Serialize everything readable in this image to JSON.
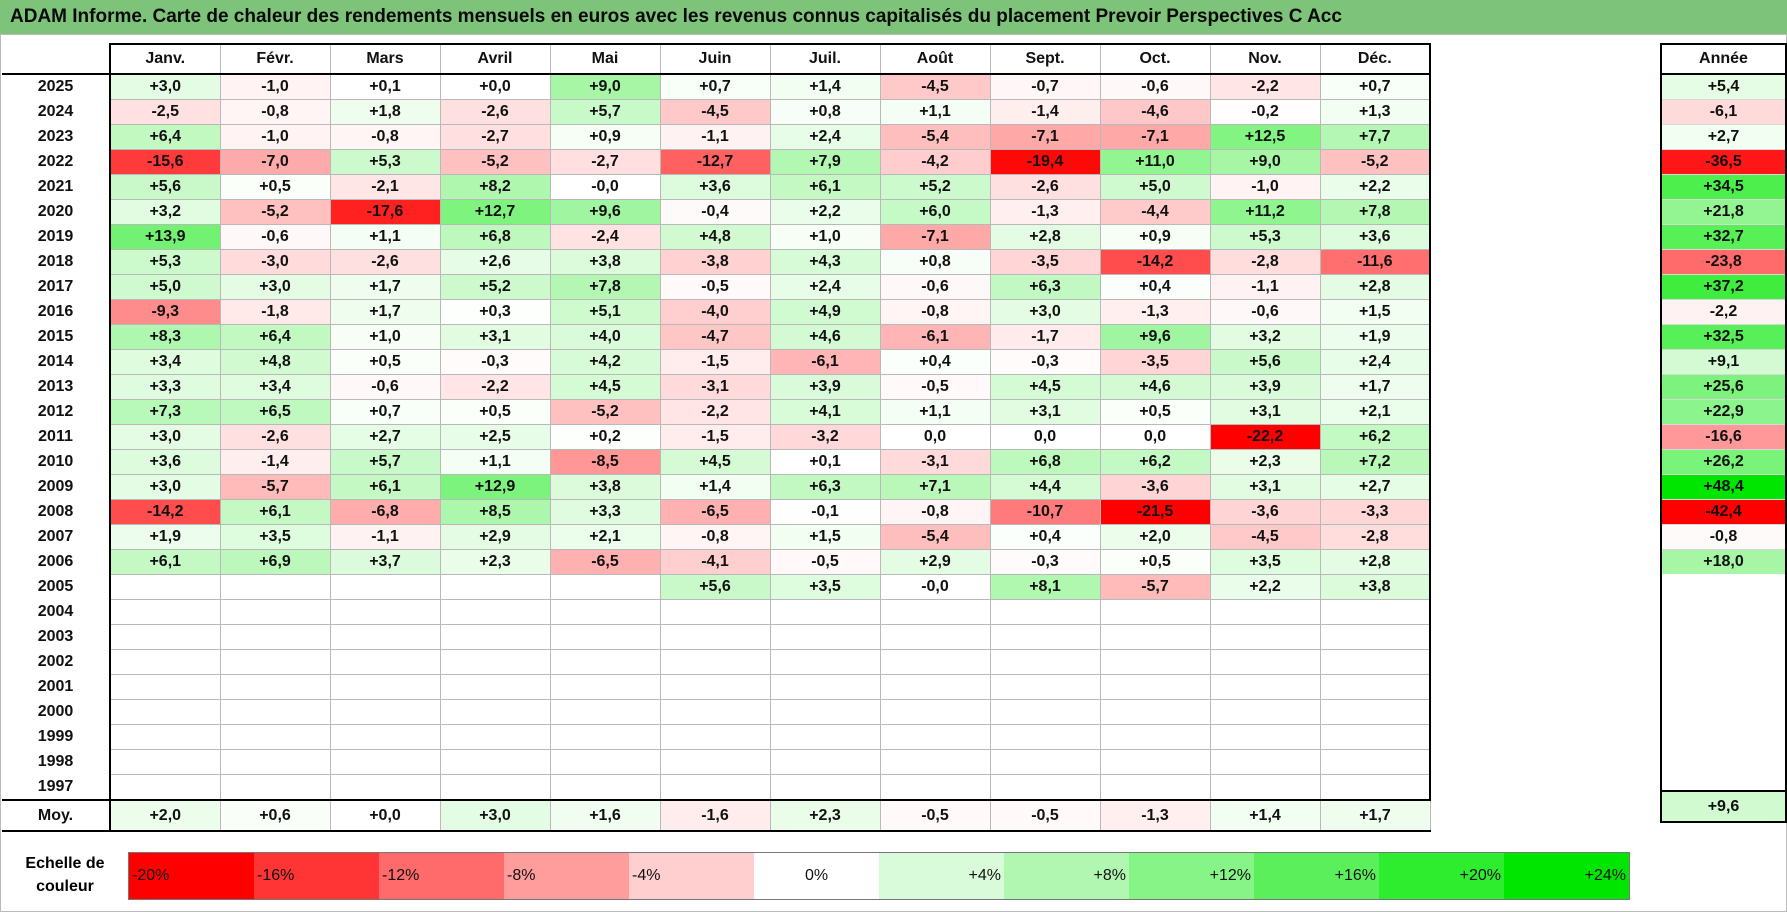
{
  "title": "ADAM Informe. Carte de chaleur des rendements mensuels en euros avec les revenus connus capitalisés du placement Prevoir Perspectives C Acc",
  "chart_data": {
    "type": "heatmap",
    "title": "ADAM Informe. Carte de chaleur des rendements mensuels en euros avec les revenus connus capitalisés du placement Prevoir Perspectives C Acc",
    "columns": [
      "Janv.",
      "Févr.",
      "Mars",
      "Avril",
      "Mai",
      "Juin",
      "Juil.",
      "Août",
      "Sept.",
      "Oct.",
      "Nov.",
      "Déc."
    ],
    "year_column_label": "Année",
    "rows": [
      {
        "year": "2025",
        "values": [
          "+3,0",
          "-1,0",
          "+0,1",
          "+0,0",
          "+9,0",
          "+0,7",
          "+1,4",
          "-4,5",
          "-0,7",
          "-0,6",
          "-2,2",
          "+0,7"
        ],
        "annual": "+5,4"
      },
      {
        "year": "2024",
        "values": [
          "-2,5",
          "-0,8",
          "+1,8",
          "-2,6",
          "+5,7",
          "-4,5",
          "+0,8",
          "+1,1",
          "-1,4",
          "-4,6",
          "-0,2",
          "+1,3"
        ],
        "annual": "-6,1"
      },
      {
        "year": "2023",
        "values": [
          "+6,4",
          "-1,0",
          "-0,8",
          "-2,7",
          "+0,9",
          "-1,1",
          "+2,4",
          "-5,4",
          "-7,1",
          "-7,1",
          "+12,5",
          "+7,7"
        ],
        "annual": "+2,7"
      },
      {
        "year": "2022",
        "values": [
          "-15,6",
          "-7,0",
          "+5,3",
          "-5,2",
          "-2,7",
          "-12,7",
          "+7,9",
          "-4,2",
          "-19,4",
          "+11,0",
          "+9,0",
          "-5,2"
        ],
        "annual": "-36,5"
      },
      {
        "year": "2021",
        "values": [
          "+5,6",
          "+0,5",
          "-2,1",
          "+8,2",
          "-0,0",
          "+3,6",
          "+6,1",
          "+5,2",
          "-2,6",
          "+5,0",
          "-1,0",
          "+2,2"
        ],
        "annual": "+34,5"
      },
      {
        "year": "2020",
        "values": [
          "+3,2",
          "-5,2",
          "-17,6",
          "+12,7",
          "+9,6",
          "-0,4",
          "+2,2",
          "+6,0",
          "-1,3",
          "-4,4",
          "+11,2",
          "+7,8"
        ],
        "annual": "+21,8"
      },
      {
        "year": "2019",
        "values": [
          "+13,9",
          "-0,6",
          "+1,1",
          "+6,8",
          "-2,4",
          "+4,8",
          "+1,0",
          "-7,1",
          "+2,8",
          "+0,9",
          "+5,3",
          "+3,6"
        ],
        "annual": "+32,7"
      },
      {
        "year": "2018",
        "values": [
          "+5,3",
          "-3,0",
          "-2,6",
          "+2,6",
          "+3,8",
          "-3,8",
          "+4,3",
          "+0,8",
          "-3,5",
          "-14,2",
          "-2,8",
          "-11,6"
        ],
        "annual": "-23,8"
      },
      {
        "year": "2017",
        "values": [
          "+5,0",
          "+3,0",
          "+1,7",
          "+5,2",
          "+7,8",
          "-0,5",
          "+2,4",
          "-0,6",
          "+6,3",
          "+0,4",
          "-1,1",
          "+2,8"
        ],
        "annual": "+37,2"
      },
      {
        "year": "2016",
        "values": [
          "-9,3",
          "-1,8",
          "+1,7",
          "+0,3",
          "+5,1",
          "-4,0",
          "+4,9",
          "-0,8",
          "+3,0",
          "-1,3",
          "-0,6",
          "+1,5"
        ],
        "annual": "-2,2"
      },
      {
        "year": "2015",
        "values": [
          "+8,3",
          "+6,4",
          "+1,0",
          "+3,1",
          "+4,0",
          "-4,7",
          "+4,6",
          "-6,1",
          "-1,7",
          "+9,6",
          "+3,2",
          "+1,9"
        ],
        "annual": "+32,5"
      },
      {
        "year": "2014",
        "values": [
          "+3,4",
          "+4,8",
          "+0,5",
          "-0,3",
          "+4,2",
          "-1,5",
          "-6,1",
          "+0,4",
          "-0,3",
          "-3,5",
          "+5,6",
          "+2,4"
        ],
        "annual": "+9,1"
      },
      {
        "year": "2013",
        "values": [
          "+3,3",
          "+3,4",
          "-0,6",
          "-2,2",
          "+4,5",
          "-3,1",
          "+3,9",
          "-0,5",
          "+4,5",
          "+4,6",
          "+3,9",
          "+1,7"
        ],
        "annual": "+25,6"
      },
      {
        "year": "2012",
        "values": [
          "+7,3",
          "+6,5",
          "+0,7",
          "+0,5",
          "-5,2",
          "-2,2",
          "+4,1",
          "+1,1",
          "+3,1",
          "+0,5",
          "+3,1",
          "+2,1"
        ],
        "annual": "+22,9"
      },
      {
        "year": "2011",
        "values": [
          "+3,0",
          "-2,6",
          "+2,7",
          "+2,5",
          "+0,2",
          "-1,5",
          "-3,2",
          "0,0",
          "0,0",
          "0,0",
          "-22,2",
          "+6,2"
        ],
        "annual": "-16,6"
      },
      {
        "year": "2010",
        "values": [
          "+3,6",
          "-1,4",
          "+5,7",
          "+1,1",
          "-8,5",
          "+4,5",
          "+0,1",
          "-3,1",
          "+6,8",
          "+6,2",
          "+2,3",
          "+7,2"
        ],
        "annual": "+26,2"
      },
      {
        "year": "2009",
        "values": [
          "+3,0",
          "-5,7",
          "+6,1",
          "+12,9",
          "+3,8",
          "+1,4",
          "+6,3",
          "+7,1",
          "+4,4",
          "-3,6",
          "+3,1",
          "+2,7"
        ],
        "annual": "+48,4"
      },
      {
        "year": "2008",
        "values": [
          "-14,2",
          "+6,1",
          "-6,8",
          "+8,5",
          "+3,3",
          "-6,5",
          "-0,1",
          "-0,8",
          "-10,7",
          "-21,5",
          "-3,6",
          "-3,3"
        ],
        "annual": "-42,4"
      },
      {
        "year": "2007",
        "values": [
          "+1,9",
          "+3,5",
          "-1,1",
          "+2,9",
          "+2,1",
          "-0,8",
          "+1,5",
          "-5,4",
          "+0,4",
          "+2,0",
          "-4,5",
          "-2,8"
        ],
        "annual": "-0,8"
      },
      {
        "year": "2006",
        "values": [
          "+6,1",
          "+6,9",
          "+3,7",
          "+2,3",
          "-6,5",
          "-4,1",
          "-0,5",
          "+2,9",
          "-0,3",
          "+0,5",
          "+3,5",
          "+2,8"
        ],
        "annual": "+18,0"
      },
      {
        "year": "2005",
        "values": [
          "",
          "",
          "",
          "",
          "",
          "+5,6",
          "+3,5",
          "-0,0",
          "+8,1",
          "-5,7",
          "+2,2",
          "+3,8"
        ],
        "annual": ""
      },
      {
        "year": "2004",
        "values": [
          "",
          "",
          "",
          "",
          "",
          "",
          "",
          "",
          "",
          "",
          "",
          ""
        ],
        "annual": ""
      },
      {
        "year": "2003",
        "values": [
          "",
          "",
          "",
          "",
          "",
          "",
          "",
          "",
          "",
          "",
          "",
          ""
        ],
        "annual": ""
      },
      {
        "year": "2002",
        "values": [
          "",
          "",
          "",
          "",
          "",
          "",
          "",
          "",
          "",
          "",
          "",
          ""
        ],
        "annual": ""
      },
      {
        "year": "2001",
        "values": [
          "",
          "",
          "",
          "",
          "",
          "",
          "",
          "",
          "",
          "",
          "",
          ""
        ],
        "annual": ""
      },
      {
        "year": "2000",
        "values": [
          "",
          "",
          "",
          "",
          "",
          "",
          "",
          "",
          "",
          "",
          "",
          ""
        ],
        "annual": ""
      },
      {
        "year": "1999",
        "values": [
          "",
          "",
          "",
          "",
          "",
          "",
          "",
          "",
          "",
          "",
          "",
          ""
        ],
        "annual": ""
      },
      {
        "year": "1998",
        "values": [
          "",
          "",
          "",
          "",
          "",
          "",
          "",
          "",
          "",
          "",
          "",
          ""
        ],
        "annual": ""
      },
      {
        "year": "1997",
        "values": [
          "",
          "",
          "",
          "",
          "",
          "",
          "",
          "",
          "",
          "",
          "",
          ""
        ],
        "annual": ""
      }
    ],
    "average_row": {
      "label": "Moy.",
      "values": [
        "+2,0",
        "+0,6",
        "+0,0",
        "+3,0",
        "+1,6",
        "-1,6",
        "+2,3",
        "-0,5",
        "-0,5",
        "-1,3",
        "+1,4",
        "+1,7"
      ],
      "annual": "+9,6"
    },
    "color_scale": {
      "label_line1": "Echelle de",
      "label_line2": "couleur",
      "stops": [
        {
          "label": "-20%",
          "value": -20,
          "color": "#ff0000"
        },
        {
          "label": "-16%",
          "value": -16,
          "color": "#ff3535"
        },
        {
          "label": "-12%",
          "value": -12,
          "color": "#ff6a6a"
        },
        {
          "label": "-8%",
          "value": -8,
          "color": "#ff9d9d"
        },
        {
          "label": "-4%",
          "value": -4,
          "color": "#ffcfcf"
        },
        {
          "label": "0%",
          "value": 0,
          "color": "#ffffff"
        },
        {
          "label": "+4%",
          "value": 4,
          "color": "#d9fbd9"
        },
        {
          "label": "+8%",
          "value": 8,
          "color": "#b1f7b1"
        },
        {
          "label": "+12%",
          "value": 12,
          "color": "#86f486"
        },
        {
          "label": "+16%",
          "value": 16,
          "color": "#5bf05b"
        },
        {
          "label": "+20%",
          "value": 20,
          "color": "#2eec2e"
        },
        {
          "label": "+24%",
          "value": 24,
          "color": "#00e600"
        }
      ]
    }
  }
}
